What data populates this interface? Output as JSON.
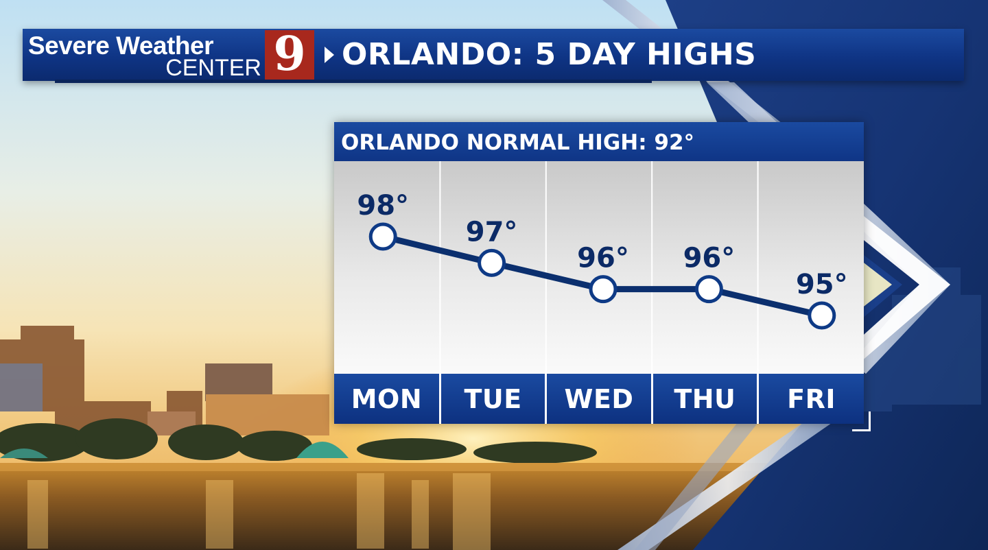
{
  "header": {
    "logo_line1": "Severe Weather",
    "logo_line2": "CENTER",
    "logo_number": "9",
    "title": "ORLANDO: 5 DAY HIGHS"
  },
  "colors": {
    "brand_blue": "#0f3586",
    "logo_red": "#a8281d",
    "line_navy": "#0b2f6e"
  },
  "chart_data": {
    "type": "line",
    "title": "ORLANDO NORMAL HIGH: 92°",
    "categories": [
      "MON",
      "TUE",
      "WED",
      "THU",
      "FRI"
    ],
    "values": [
      98,
      97,
      96,
      96,
      95
    ],
    "value_labels": [
      "98°",
      "97°",
      "96°",
      "96°",
      "95°"
    ],
    "grid": true,
    "legend": "none"
  }
}
